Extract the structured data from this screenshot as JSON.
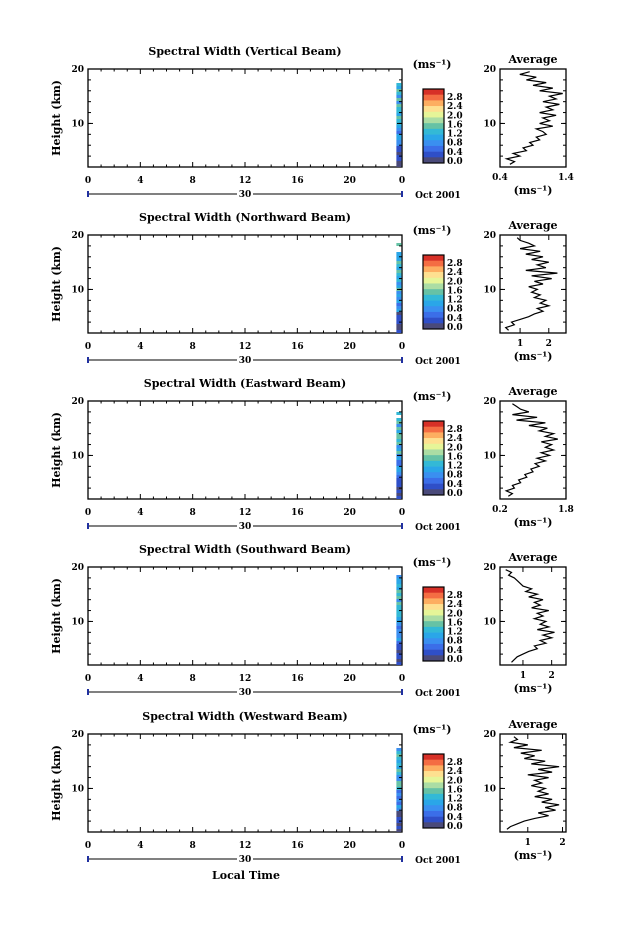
{
  "figure": {
    "xlabel": "Local Time",
    "date_label": "Oct 2001",
    "day_label": "30"
  },
  "colorbar": {
    "unit": "(ms⁻¹)",
    "ticks": [
      "2.8",
      "2.4",
      "2.0",
      "1.6",
      "1.2",
      "0.8",
      "0.4",
      "0.0"
    ],
    "colors": [
      "#d73027",
      "#f46d43",
      "#fdae61",
      "#fee090",
      "#e6f598",
      "#abdda4",
      "#66c2a5",
      "#33b9d6",
      "#2aa6e8",
      "#3a8ff0",
      "#3b6ee8",
      "#2f4fc8",
      "#4a4a7a"
    ]
  },
  "chart_data": [
    {
      "type": "heatmap",
      "title": "Spectral Width (Vertical Beam)",
      "ylabel": "Height (km)",
      "x_ticks": [
        "0",
        "4",
        "8",
        "12",
        "16",
        "20",
        "0"
      ],
      "y_ticks": [
        "20",
        "10"
      ],
      "xlim": [
        0,
        24
      ],
      "ylim": [
        2,
        20
      ],
      "data_column_at_hour": 23.8,
      "profile": {
        "title": "Average",
        "xlabel": "(ms⁻¹)",
        "x_ticks": [
          "0.4",
          "1.4"
        ],
        "xlim": [
          0.4,
          1.4
        ],
        "y_ticks": [
          "20",
          "10"
        ],
        "height_km": [
          2.5,
          3,
          3.5,
          4,
          4.5,
          5,
          5.5,
          6,
          6.5,
          7,
          7.5,
          8,
          8.5,
          9,
          9.5,
          10,
          10.5,
          11,
          11.5,
          12,
          12.5,
          13,
          13.5,
          14,
          14.5,
          15,
          15.5,
          16,
          16.5,
          17,
          17.5,
          18,
          18.5,
          19,
          19.5
        ],
        "width_ms": [
          0.55,
          0.62,
          0.5,
          0.7,
          0.6,
          0.8,
          0.75,
          0.9,
          0.85,
          1.0,
          0.95,
          1.1,
          1.05,
          0.95,
          1.2,
          1.0,
          1.15,
          1.05,
          1.25,
          1.0,
          1.2,
          1.1,
          1.3,
          1.05,
          1.25,
          1.15,
          1.35,
          1.0,
          1.2,
          0.9,
          1.1,
          0.8,
          0.95,
          0.7,
          0.85
        ]
      }
    },
    {
      "type": "heatmap",
      "title": "Spectral Width (Northward Beam)",
      "ylabel": "Height (km)",
      "x_ticks": [
        "0",
        "4",
        "8",
        "12",
        "16",
        "20",
        "0"
      ],
      "y_ticks": [
        "20",
        "10"
      ],
      "xlim": [
        0,
        24
      ],
      "ylim": [
        2,
        20
      ],
      "data_column_at_hour": 23.8,
      "profile": {
        "title": "Average",
        "xlabel": "(ms⁻¹)",
        "x_ticks": [
          "1",
          "2"
        ],
        "xlim": [
          0.3,
          2.6
        ],
        "y_ticks": [
          "20",
          "10"
        ],
        "height_km": [
          2.5,
          3,
          3.5,
          4,
          4.5,
          5,
          5.5,
          6,
          6.5,
          7,
          7.5,
          8,
          8.5,
          9,
          9.5,
          10,
          10.5,
          11,
          11.5,
          12,
          12.5,
          13,
          13.5,
          14,
          14.5,
          15,
          15.5,
          16,
          16.5,
          17,
          17.5,
          18,
          18.5,
          19,
          19.5
        ],
        "width_ms": [
          0.6,
          0.5,
          0.8,
          0.7,
          1.0,
          1.3,
          1.5,
          1.8,
          1.6,
          2.0,
          1.7,
          1.9,
          1.5,
          1.7,
          1.4,
          1.6,
          1.3,
          1.8,
          1.5,
          2.1,
          1.4,
          2.3,
          1.2,
          1.9,
          1.6,
          2.0,
          1.4,
          1.8,
          1.2,
          1.7,
          1.0,
          1.5,
          1.3,
          1.0,
          0.9
        ]
      }
    },
    {
      "type": "heatmap",
      "title": "Spectral Width (Eastward Beam)",
      "ylabel": "Height (km)",
      "x_ticks": [
        "0",
        "4",
        "8",
        "12",
        "16",
        "20",
        "0"
      ],
      "y_ticks": [
        "20",
        "10"
      ],
      "xlim": [
        0,
        24
      ],
      "ylim": [
        2,
        20
      ],
      "data_column_at_hour": 23.8,
      "profile": {
        "title": "Average",
        "xlabel": "(ms⁻¹)",
        "x_ticks": [
          "0.2",
          "1.8"
        ],
        "xlim": [
          0.2,
          1.8
        ],
        "y_ticks": [
          "20",
          "10"
        ],
        "height_km": [
          2.5,
          3,
          3.5,
          4,
          4.5,
          5,
          5.5,
          6,
          6.5,
          7,
          7.5,
          8,
          8.5,
          9,
          9.5,
          10,
          10.5,
          11,
          11.5,
          12,
          12.5,
          13,
          13.5,
          14,
          14.5,
          15,
          15.5,
          16,
          16.5,
          17,
          17.5,
          18,
          18.5,
          19,
          19.5
        ],
        "width_ms": [
          0.4,
          0.5,
          0.35,
          0.55,
          0.5,
          0.7,
          0.65,
          0.85,
          0.8,
          1.0,
          0.95,
          1.15,
          1.05,
          1.3,
          1.1,
          1.4,
          1.2,
          1.5,
          1.3,
          1.45,
          1.2,
          1.6,
          1.3,
          1.5,
          1.15,
          1.35,
          0.9,
          1.3,
          0.6,
          1.1,
          0.5,
          0.9,
          0.7,
          0.6,
          0.5
        ]
      }
    },
    {
      "type": "heatmap",
      "title": "Spectral Width (Southward Beam)",
      "ylabel": "Height (km)",
      "x_ticks": [
        "0",
        "4",
        "8",
        "12",
        "16",
        "20",
        "0"
      ],
      "y_ticks": [
        "20",
        "10"
      ],
      "xlim": [
        0,
        24
      ],
      "ylim": [
        2,
        20
      ],
      "data_column_at_hour": 23.8,
      "profile": {
        "title": "Average",
        "xlabel": "(ms⁻¹)",
        "x_ticks": [
          "1",
          "2"
        ],
        "xlim": [
          0.2,
          2.5
        ],
        "y_ticks": [
          "20",
          "10"
        ],
        "height_km": [
          2.5,
          3,
          3.5,
          4,
          4.5,
          5,
          5.5,
          6,
          6.5,
          7,
          7.5,
          8,
          8.5,
          9,
          9.5,
          10,
          10.5,
          11,
          11.5,
          12,
          12.5,
          13,
          13.5,
          14,
          14.5,
          15,
          15.5,
          16,
          16.5,
          17,
          17.5,
          18,
          18.5,
          19,
          19.5
        ],
        "width_ms": [
          0.6,
          0.7,
          0.8,
          1.0,
          1.2,
          1.5,
          1.4,
          1.8,
          1.6,
          2.0,
          1.7,
          2.1,
          1.5,
          1.9,
          1.6,
          1.8,
          1.4,
          1.7,
          1.5,
          1.9,
          1.3,
          1.6,
          1.4,
          1.7,
          1.2,
          1.5,
          1.1,
          1.3,
          1.0,
          0.9,
          0.8,
          0.7,
          0.5,
          0.6,
          0.4
        ]
      }
    },
    {
      "type": "heatmap",
      "title": "Spectral Width (Westward Beam)",
      "ylabel": "Height (km)",
      "x_ticks": [
        "0",
        "4",
        "8",
        "12",
        "16",
        "20",
        "0"
      ],
      "y_ticks": [
        "20",
        "10"
      ],
      "xlim": [
        0,
        24
      ],
      "ylim": [
        2,
        20
      ],
      "data_column_at_hour": 23.8,
      "profile": {
        "title": "Average",
        "xlabel": "(ms⁻¹)",
        "x_ticks": [
          "1",
          "2"
        ],
        "xlim": [
          0.2,
          2.1
        ],
        "y_ticks": [
          "20",
          "10"
        ],
        "height_km": [
          2.5,
          3,
          3.5,
          4,
          4.5,
          5,
          5.5,
          6,
          6.5,
          7,
          7.5,
          8,
          8.5,
          9,
          9.5,
          10,
          10.5,
          11,
          11.5,
          12,
          12.5,
          13,
          13.5,
          14,
          14.5,
          15,
          15.5,
          16,
          16.5,
          17,
          17.5,
          18,
          18.5,
          19,
          19.5
        ],
        "width_ms": [
          0.4,
          0.5,
          0.7,
          0.9,
          1.2,
          1.6,
          1.3,
          1.8,
          1.5,
          1.9,
          1.4,
          1.7,
          1.2,
          1.6,
          1.3,
          1.5,
          1.1,
          1.4,
          1.2,
          1.6,
          1.0,
          1.7,
          1.3,
          1.9,
          1.1,
          1.5,
          0.9,
          1.2,
          0.8,
          1.4,
          0.6,
          1.0,
          0.5,
          0.7,
          0.6
        ]
      }
    }
  ]
}
